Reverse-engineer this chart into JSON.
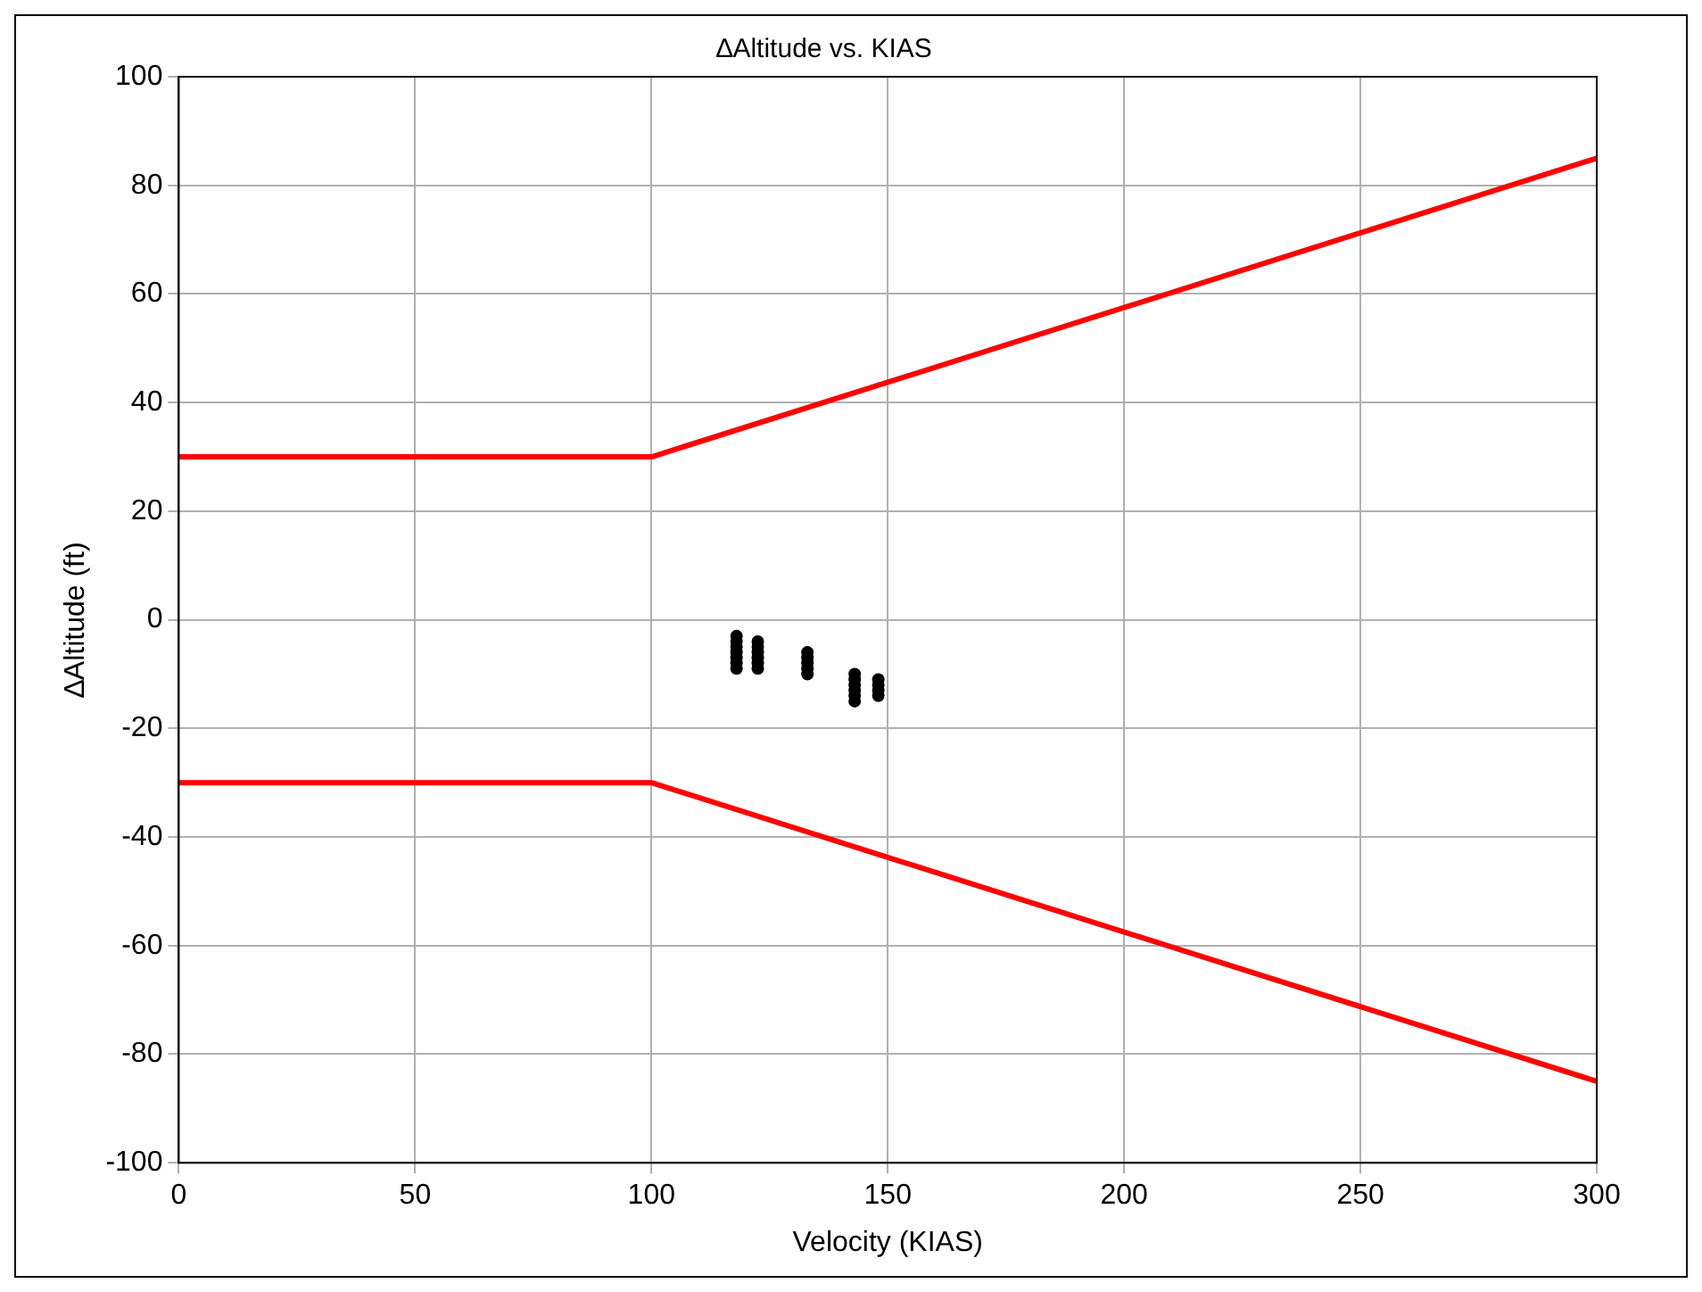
{
  "chart_data": {
    "type": "scatter",
    "title": "∆Altitude vs. KIAS",
    "xlabel": "Velocity (KIAS)",
    "ylabel": "∆Altitude (ft)",
    "xlim": [
      0,
      300
    ],
    "xticks": [
      0,
      50,
      100,
      150,
      200,
      250,
      300
    ],
    "ylim": [
      -100,
      100
    ],
    "yticks": [
      -100,
      -80,
      -60,
      -40,
      -20,
      0,
      20,
      40,
      60,
      80,
      100
    ],
    "grid": true,
    "legend": false,
    "series": [
      {
        "type": "line",
        "color": "#ff0000",
        "x": [
          0,
          100,
          300
        ],
        "values": [
          30,
          30,
          85
        ],
        "marker": "none",
        "line_style": "solid"
      },
      {
        "type": "line",
        "color": "#ff0000",
        "x": [
          0,
          100,
          300
        ],
        "values": [
          -30,
          -30,
          -85
        ],
        "marker": "none",
        "line_style": "solid"
      },
      {
        "type": "scatter",
        "color": "#000000",
        "marker": "circle",
        "x": [
          118,
          118,
          118,
          118,
          118,
          118,
          118,
          122.5,
          122.5,
          122.5,
          122.5,
          122.5,
          122.5,
          133,
          133,
          133,
          133,
          133,
          143,
          143,
          143,
          143,
          143,
          143,
          148,
          148,
          148,
          148
        ],
        "values": [
          -3,
          -4,
          -5,
          -6,
          -7,
          -8,
          -9,
          -4,
          -5,
          -6,
          -7,
          -8,
          -9,
          -6,
          -7,
          -8,
          -9,
          -10,
          -10,
          -11,
          -12,
          -13,
          -14,
          -15,
          -11,
          -12,
          -13,
          -14
        ]
      }
    ]
  }
}
